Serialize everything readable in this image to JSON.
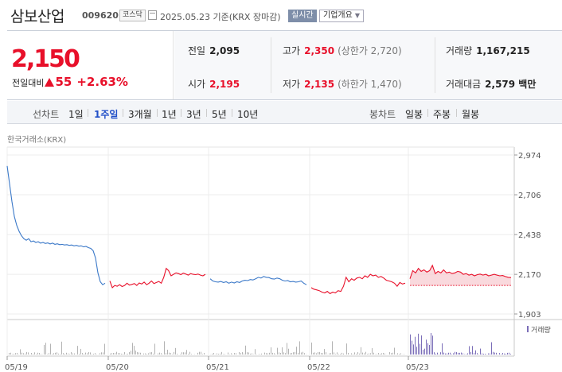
{
  "header": {
    "name": "삼보산업",
    "code": "009620",
    "market": "코스닥",
    "date": "2025.05.23",
    "basis": "기준(KRX 장마감)",
    "realtime": "실시간",
    "overview": "기업개요",
    "date_icon": "calendar-icon",
    "dropdown_icon": "chevron-down-icon"
  },
  "quote": {
    "price": "2,150",
    "change_label": "전일대비",
    "change_amount": "55",
    "change_pct": "+2.63%",
    "direction": "up"
  },
  "stats": {
    "prev_label": "전일",
    "prev": "2,095",
    "high_label": "고가",
    "high": "2,350",
    "upper_limit": "(상한가 2,720)",
    "volume_label": "거래량",
    "volume": "1,167,215",
    "open_label": "시가",
    "open": "2,195",
    "low_label": "저가",
    "low": "2,135",
    "lower_limit": "(하한가 1,470)",
    "value_label": "거래대금",
    "value": "2,579 백만"
  },
  "toolbar": {
    "line_title": "선차트",
    "line_tabs": [
      "1일",
      "1주일",
      "3개월",
      "1년",
      "3년",
      "5년",
      "10년"
    ],
    "line_active": "1주일",
    "candle_title": "봉차트",
    "candle_tabs": [
      "일봉",
      "주봉",
      "월봉"
    ]
  },
  "chart_data": {
    "type": "line",
    "source": "한국거래소(KRX)",
    "x_ticks": [
      "05/19",
      "05/20",
      "05/21",
      "05/22",
      "05/23"
    ],
    "y_ticks": [
      2974,
      2706,
      2438,
      2170,
      1903
    ],
    "ylim": [
      1903,
      2974
    ],
    "prev_close": 2095,
    "colors": {
      "down": "#3a78c8",
      "up": "#e8102a",
      "fill": "#f6c9cf",
      "volume": "#b3b3b3",
      "volume_today": "#7b6eb8"
    },
    "volume_legend": "거래량",
    "days": [
      {
        "label": "05/19",
        "prices": [
          2900,
          2780,
          2660,
          2560,
          2500,
          2460,
          2430,
          2410,
          2400,
          2410,
          2390,
          2395,
          2385,
          2390,
          2380,
          2385,
          2378,
          2382,
          2375,
          2380,
          2372,
          2376,
          2370,
          2372,
          2368,
          2370,
          2365,
          2368,
          2362,
          2365,
          2360,
          2362,
          2355,
          2358,
          2350,
          2345,
          2330,
          2280,
          2180,
          2120,
          2100,
          2110
        ]
      },
      {
        "label": "05/20",
        "prices": [
          2125,
          2080,
          2095,
          2090,
          2100,
          2088,
          2095,
          2110,
          2098,
          2102,
          2108,
          2095,
          2112,
          2105,
          2118,
          2100,
          2110,
          2125,
          2108,
          2115,
          2122,
          2110,
          2150,
          2210,
          2195,
          2160,
          2170,
          2180,
          2175,
          2168,
          2178,
          2172,
          2165,
          2175,
          2170,
          2168,
          2172,
          2165,
          2160,
          2170
        ]
      },
      {
        "label": "05/21",
        "prices": [
          2140,
          2125,
          2120,
          2118,
          2122,
          2115,
          2120,
          2110,
          2118,
          2112,
          2120,
          2115,
          2125,
          2130,
          2128,
          2135,
          2132,
          2140,
          2150,
          2145,
          2155,
          2150,
          2148,
          2140,
          2138,
          2145,
          2140,
          2130,
          2125,
          2128,
          2120,
          2122,
          2118,
          2120,
          2125,
          2110,
          2100
        ]
      },
      {
        "label": "05/22",
        "prices": [
          2080,
          2070,
          2065,
          2060,
          2050,
          2045,
          2055,
          2040,
          2050,
          2045,
          2060,
          2055,
          2090,
          2150,
          2120,
          2140,
          2130,
          2145,
          2150,
          2140,
          2160,
          2150,
          2170,
          2160,
          2165,
          2150,
          2155,
          2145,
          2130,
          2125,
          2120,
          2110,
          2090,
          2115,
          2105,
          2110
        ]
      },
      {
        "label": "05/23",
        "prices": [
          2140,
          2195,
          2180,
          2210,
          2190,
          2200,
          2185,
          2195,
          2230,
          2175,
          2190,
          2180,
          2200,
          2180,
          2185,
          2175,
          2180,
          2190,
          2185,
          2170,
          2175,
          2165,
          2170,
          2160,
          2168,
          2172,
          2165,
          2170,
          2160,
          2165,
          2170,
          2165,
          2160,
          2162,
          2155,
          2150,
          2148
        ]
      }
    ]
  }
}
